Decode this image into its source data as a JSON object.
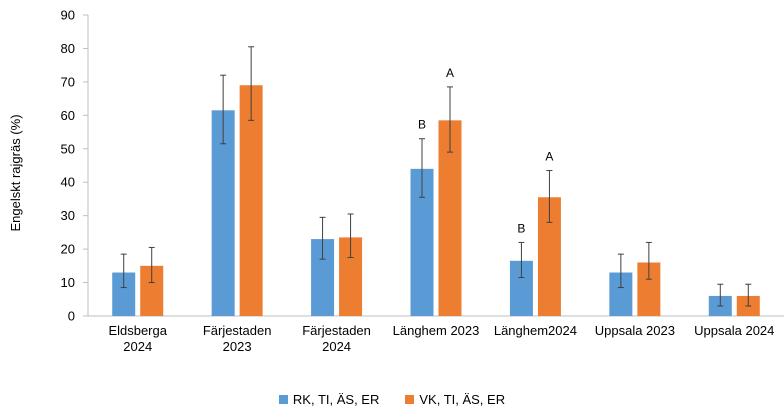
{
  "chart_data": {
    "type": "bar",
    "ylabel": "Engelskt rajgräs (%)",
    "ylim": [
      0,
      90
    ],
    "yticks": [
      "0",
      "10",
      "20",
      "30",
      "40",
      "50",
      "60",
      "70",
      "80",
      "90"
    ],
    "categories": [
      [
        "Eldsberga",
        "2024"
      ],
      [
        "Färjestaden",
        "2023"
      ],
      [
        "Färjestaden",
        "2024"
      ],
      [
        "Länghem 2023"
      ],
      [
        "Länghem2024"
      ],
      [
        "Uppsala 2023"
      ],
      [
        "Uppsala 2024"
      ]
    ],
    "series": [
      {
        "name": "RK, TI, ÄS, ER",
        "color": "#5B9BD5",
        "values": [
          13,
          61.5,
          23,
          44,
          16.5,
          13,
          6
        ],
        "err_low": [
          8.5,
          51.5,
          17,
          35.5,
          11.5,
          8.5,
          3
        ],
        "err_high": [
          18.5,
          72,
          29.5,
          53,
          22,
          18.5,
          9.5
        ],
        "labels": [
          "",
          "",
          "",
          "B",
          "B",
          "",
          ""
        ]
      },
      {
        "name": "VK, TI, ÄS, ER",
        "color": "#ED7D31",
        "values": [
          15,
          69,
          23.5,
          58.5,
          35.5,
          16,
          6
        ],
        "err_low": [
          10,
          58.5,
          17.5,
          49,
          28,
          11,
          3
        ],
        "err_high": [
          20.5,
          80.5,
          30.5,
          68.5,
          43.5,
          22,
          9.5
        ],
        "labels": [
          "",
          "",
          "",
          "A",
          "A",
          "",
          ""
        ]
      }
    ],
    "legend_position": "bottom",
    "grid": false
  }
}
